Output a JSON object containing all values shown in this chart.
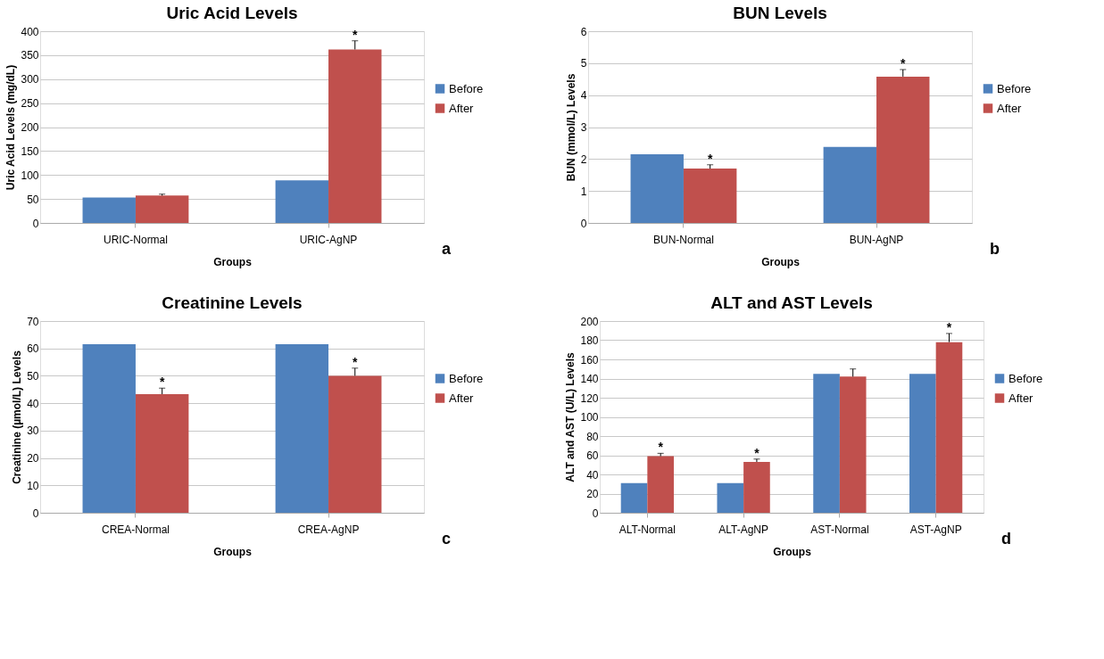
{
  "chart_data": [
    {
      "type": "bar",
      "title": "Uric Acid Levels",
      "xlabel": "Groups",
      "ylabel": "Uric Acid Levels (mg/dL)",
      "categories": [
        "URIC-Normal",
        "URIC-AgNP"
      ],
      "ylim": [
        0,
        400
      ],
      "yticks": [
        0,
        50,
        100,
        150,
        200,
        250,
        300,
        350,
        400
      ],
      "grid": "y",
      "legend": "right",
      "series": [
        {
          "name": "Before",
          "color": "#4f81bd",
          "values": [
            53,
            89
          ]
        },
        {
          "name": "After",
          "color": "#c0504d",
          "values": [
            57,
            362
          ],
          "errors": [
            [
              57,
              60
            ],
            [
              362,
              380
            ]
          ],
          "value_labels": [
            null,
            "*"
          ]
        }
      ],
      "annotations": [
        "a"
      ]
    },
    {
      "type": "bar",
      "title": "BUN Levels",
      "xlabel": "Groups",
      "ylabel": "BUN (mmol/L) Levels",
      "categories": [
        "BUN-Normal",
        "BUN-AgNP"
      ],
      "ylim": [
        0,
        6
      ],
      "yticks": [
        0,
        1,
        2,
        3,
        4,
        5,
        6
      ],
      "grid": "y",
      "legend": "right",
      "series": [
        {
          "name": "Before",
          "color": "#4f81bd",
          "values": [
            2.15,
            2.38
          ]
        },
        {
          "name": "After",
          "color": "#c0504d",
          "values": [
            1.7,
            4.58
          ],
          "errors": [
            [
              1.7,
              1.82
            ],
            [
              4.58,
              4.8
            ]
          ],
          "value_labels": [
            "*",
            "*"
          ]
        }
      ],
      "annotations": [
        "b"
      ]
    },
    {
      "type": "bar",
      "title": "Creatinine Levels",
      "xlabel": "Groups",
      "ylabel": "Creatinine (µmol/L) Levels",
      "categories": [
        "CREA-Normal",
        "CREA-AgNP"
      ],
      "ylim": [
        0,
        70
      ],
      "yticks": [
        0,
        10,
        20,
        30,
        40,
        50,
        60,
        70
      ],
      "grid": "y",
      "legend": "right",
      "series": [
        {
          "name": "Before",
          "color": "#4f81bd",
          "values": [
            61.5,
            61.5
          ]
        },
        {
          "name": "After",
          "color": "#c0504d",
          "values": [
            43.3,
            50
          ],
          "errors": [
            [
              43.3,
              45.5
            ],
            [
              50,
              52.8
            ]
          ],
          "value_labels": [
            "*",
            "*"
          ]
        }
      ],
      "annotations": [
        "c"
      ]
    },
    {
      "type": "bar",
      "title": "ALT and AST Levels",
      "xlabel": "Groups",
      "ylabel": "ALT and AST (U/L) Levels",
      "categories": [
        "ALT-Normal",
        "ALT-AgNP",
        "AST-Normal",
        "AST-AgNP"
      ],
      "ylim": [
        0,
        200
      ],
      "yticks": [
        0,
        20,
        40,
        60,
        80,
        100,
        120,
        140,
        160,
        180,
        200
      ],
      "grid": "y",
      "legend": "right",
      "series": [
        {
          "name": "Before",
          "color": "#4f81bd",
          "values": [
            31,
            31,
            145,
            145
          ]
        },
        {
          "name": "After",
          "color": "#c0504d",
          "values": [
            59,
            53,
            142,
            178
          ],
          "errors": [
            [
              59,
              62
            ],
            [
              53,
              56
            ],
            [
              142,
              150
            ],
            [
              178,
              187
            ]
          ],
          "value_labels": [
            "*",
            "*",
            null,
            "*"
          ]
        }
      ],
      "annotations": [
        "d"
      ]
    }
  ]
}
